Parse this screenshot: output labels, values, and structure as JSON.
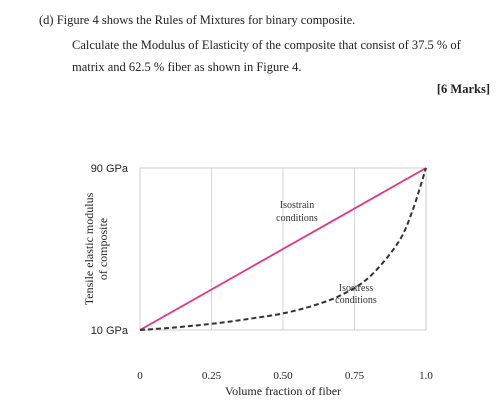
{
  "question": {
    "line1": "(d) Figure 4 shows the Rules of Mixtures for binary composite.",
    "line2": "Calculate the Modulus of Elasticity of the composite that consist of 37.5 % of",
    "line3": "matrix and 62.5 % fiber as shown in Figure 4.",
    "marks": "[6 Marks]"
  },
  "chart_data": {
    "type": "line",
    "xlabel": "Volume fraction of fiber",
    "ylabel_line1": "Tensile elastic modulus",
    "ylabel_line2": "of composite",
    "xlim": [
      0,
      1.0
    ],
    "ylim": [
      10,
      90
    ],
    "x_ticks": [
      "0",
      "0.25",
      "0.50",
      "0.75",
      "1.0"
    ],
    "x_tick_values": [
      0,
      0.25,
      0.5,
      0.75,
      1.0
    ],
    "y_ticks": [
      "10 GPa",
      "90 GPa"
    ],
    "y_tick_values": [
      10,
      90
    ],
    "grid": true,
    "series": [
      {
        "name": "Isostrain conditions",
        "label_line1": "Isostrain",
        "label_line2": "conditions",
        "color": "#e5328a",
        "style": "solid",
        "x": [
          0,
          1.0
        ],
        "y": [
          10,
          90
        ]
      },
      {
        "name": "Isostress conditions",
        "label_line1": "Isostress",
        "label_line2": "conditions",
        "color": "#333333",
        "style": "dashed",
        "x": [
          0,
          0.1,
          0.2,
          0.3,
          0.4,
          0.5,
          0.6,
          0.7,
          0.8,
          0.9,
          0.95,
          1.0
        ],
        "y": [
          10,
          11,
          12.3,
          13.9,
          15.9,
          18.2,
          21.8,
          27,
          35.9,
          52.6,
          67.8,
          90
        ]
      }
    ]
  }
}
